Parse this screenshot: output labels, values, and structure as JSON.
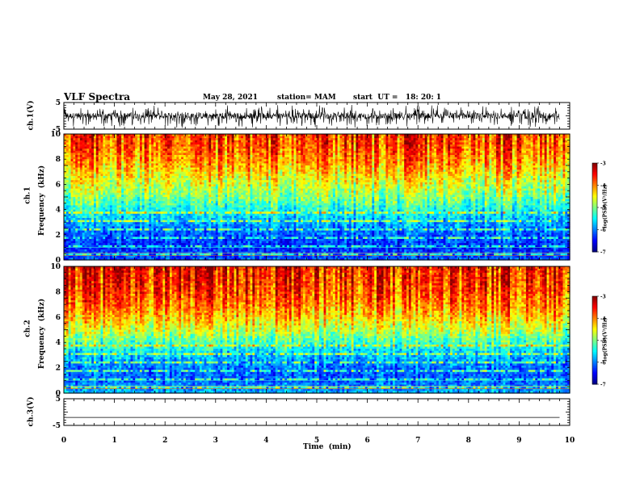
{
  "header": {
    "title": "VLF Spectra",
    "date": "May 28, 2021",
    "station": "station= MAM",
    "start": "start  UT =   18: 20: 1"
  },
  "panels": {
    "ch1_wave_label": "ch.1(V)",
    "ch1_spec_label_a": "ch.1",
    "ch1_spec_label_b": "Frequency  (kHz)",
    "ch2_spec_label_a": "ch.2",
    "ch2_spec_label_b": "Frequency  (kHz)",
    "ch3_wave_label": "ch.3(V)",
    "xlabel": "Time  (min)",
    "colorbar_label": "log(PSD)(V²/Hz)"
  },
  "colors": {
    "spectrogram_low": "#00008b",
    "spectrogram_high": "#ff2200",
    "trace": "#000000"
  },
  "chart_data": [
    {
      "type": "line",
      "panel": "ch1 waveform",
      "ylabel": "ch.1(V)",
      "ylim": [
        -5,
        5
      ],
      "yticks": [
        5,
        -5
      ],
      "xlim": [
        0,
        10
      ],
      "signal": "noisy oscillating voltage centered near 0 V, spikes up to about +3 V / -4 V"
    },
    {
      "type": "heatmap",
      "panel": "ch1 spectrogram",
      "ylabel": "ch.1 Frequency (kHz)",
      "ylim": [
        0,
        10
      ],
      "yticks": [
        0,
        2,
        4,
        6,
        8,
        10
      ],
      "xlim": [
        0,
        10
      ],
      "colorbar": {
        "range": [
          -7,
          -3
        ],
        "ticks": [
          -3,
          -4,
          -5,
          -6,
          -7
        ],
        "label": "log(PSD)(V²/Hz)"
      },
      "profile_khz": [
        0,
        1,
        2,
        3,
        4,
        5,
        6,
        7,
        8,
        9,
        10
      ],
      "profile_logpsd": [
        -6.2,
        -6.4,
        -6.2,
        -5.9,
        -5.5,
        -5.1,
        -4.8,
        -4.5,
        -4.2,
        -4.0,
        -3.9
      ]
    },
    {
      "type": "heatmap",
      "panel": "ch2 spectrogram",
      "ylabel": "ch.2 Frequency (kHz)",
      "ylim": [
        0,
        10
      ],
      "yticks": [
        0,
        2,
        4,
        6,
        8,
        10
      ],
      "xlim": [
        0,
        10
      ],
      "colorbar": {
        "range": [
          -7,
          -3
        ],
        "ticks": [
          -3,
          -4,
          -5,
          -6,
          -7
        ],
        "label": "log(PSD)(V²/Hz)"
      },
      "profile_khz": [
        0,
        1,
        2,
        3,
        4,
        5,
        6,
        7,
        8,
        9,
        10
      ],
      "profile_logpsd": [
        -5.8,
        -6.2,
        -6.1,
        -5.8,
        -5.3,
        -4.8,
        -4.4,
        -4.1,
        -3.9,
        -3.8,
        -3.7
      ]
    },
    {
      "type": "line",
      "panel": "ch3 waveform",
      "ylabel": "ch.3(V)",
      "ylim": [
        -5,
        5
      ],
      "yticks": [
        5,
        -5
      ],
      "xlim": [
        0,
        10
      ],
      "xlabel": "Time (min)",
      "xticks": [
        0,
        1,
        2,
        3,
        4,
        5,
        6,
        7,
        8,
        9,
        10
      ],
      "values_x": [
        0,
        9.8
      ],
      "values_y": [
        -2,
        -2
      ]
    }
  ]
}
